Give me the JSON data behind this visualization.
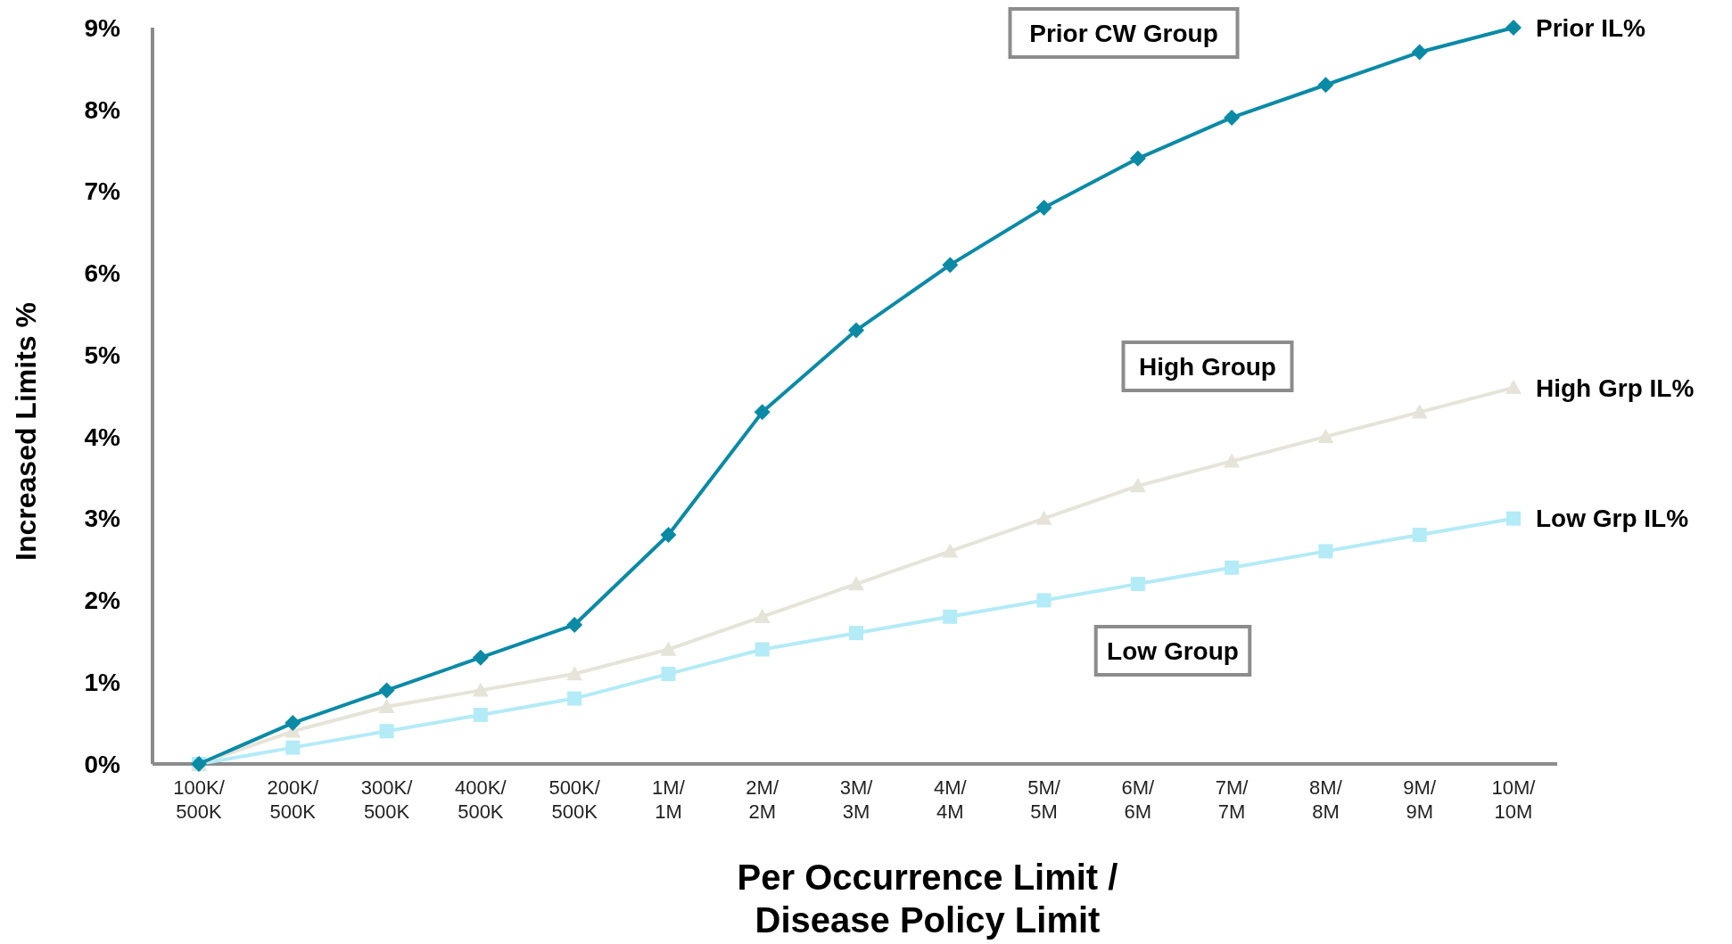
{
  "chart_data": {
    "type": "line",
    "xlabel": "Per Occurrence Limit /\nDisease Policy Limit",
    "ylabel": "Increased Limits %",
    "categories": [
      "100K/\n500K",
      "200K/\n500K",
      "300K/\n500K",
      "400K/\n500K",
      "500K/\n500K",
      "1M/\n1M",
      "2M/\n2M",
      "3M/\n3M",
      "4M/\n4M",
      "5M/\n5M",
      "6M/\n6M",
      "7M/\n7M",
      "8M/\n8M",
      "9M/\n9M",
      "10M/\n10M"
    ],
    "series": [
      {
        "name": "Prior IL%",
        "color": "#0b8aa6",
        "marker": "diamond",
        "values": [
          0,
          0.5,
          0.9,
          1.3,
          1.7,
          2.8,
          4.3,
          5.3,
          6.1,
          6.8,
          7.4,
          7.9,
          8.3,
          8.7,
          9.0
        ]
      },
      {
        "name": "High Grp IL%",
        "color": "#e6e4d8",
        "marker": "triangle",
        "values": [
          0,
          0.4,
          0.7,
          0.9,
          1.1,
          1.4,
          1.8,
          2.2,
          2.6,
          3.0,
          3.4,
          3.7,
          4.0,
          4.3,
          4.6
        ]
      },
      {
        "name": "Low Grp IL%",
        "color": "#b3ebf6",
        "marker": "square",
        "values": [
          0,
          0.2,
          0.4,
          0.6,
          0.8,
          1.1,
          1.4,
          1.6,
          1.8,
          2.0,
          2.2,
          2.4,
          2.6,
          2.8,
          3.0
        ]
      }
    ],
    "annotations": [
      "Prior CW Group",
      "High Group",
      "Low Group"
    ],
    "ylim": [
      0,
      9
    ],
    "yticks": [
      {
        "value": 0,
        "label": "0%"
      },
      {
        "value": 1,
        "label": "1%"
      },
      {
        "value": 2,
        "label": "2%"
      },
      {
        "value": 3,
        "label": "3%"
      },
      {
        "value": 4,
        "label": "4%"
      },
      {
        "value": 5,
        "label": "5%"
      },
      {
        "value": 6,
        "label": "6%"
      },
      {
        "value": 7,
        "label": "7%"
      },
      {
        "value": 8,
        "label": "8%"
      },
      {
        "value": 9,
        "label": "9%"
      }
    ],
    "grid": false,
    "line_style": "solid"
  }
}
